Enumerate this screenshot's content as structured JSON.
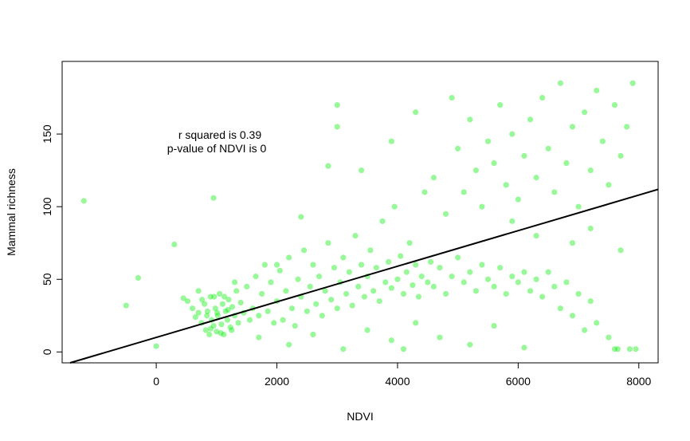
{
  "chart_data": {
    "type": "scatter",
    "title": "",
    "xlabel": "NDVI",
    "ylabel": "Mammal richness",
    "xlim": [
      -1560,
      8320
    ],
    "ylim": [
      -7.5,
      200
    ],
    "xticks": [
      0,
      2000,
      4000,
      6000,
      8000
    ],
    "yticks": [
      0,
      50,
      100,
      150
    ],
    "grid": false,
    "point_color": "#00ee00",
    "line_color": "#000000",
    "annotations": [
      "r squared is  0.39",
      "p-value of NDVI is  0"
    ],
    "regression": {
      "intercept": 10.0,
      "slope": 0.01225
    },
    "points": [
      [
        -1200,
        104
      ],
      [
        -500,
        32
      ],
      [
        -300,
        51
      ],
      [
        300,
        74
      ],
      [
        950,
        106
      ],
      [
        0,
        4
      ],
      [
        3000,
        170
      ],
      [
        3000,
        155
      ],
      [
        450,
        37
      ],
      [
        520,
        35
      ],
      [
        600,
        30
      ],
      [
        650,
        24
      ],
      [
        700,
        42
      ],
      [
        750,
        20
      ],
      [
        800,
        33
      ],
      [
        820,
        15
      ],
      [
        850,
        28
      ],
      [
        880,
        12
      ],
      [
        900,
        38
      ],
      [
        920,
        22
      ],
      [
        950,
        18
      ],
      [
        980,
        30
      ],
      [
        1000,
        14
      ],
      [
        1020,
        25
      ],
      [
        1050,
        40
      ],
      [
        1080,
        19
      ],
      [
        1100,
        33
      ],
      [
        1120,
        12
      ],
      [
        1150,
        28
      ],
      [
        1180,
        22
      ],
      [
        1200,
        36
      ],
      [
        1230,
        17
      ],
      [
        1260,
        31
      ],
      [
        1300,
        25
      ],
      [
        1330,
        42
      ],
      [
        1360,
        20
      ],
      [
        1400,
        34
      ],
      [
        1450,
        27
      ],
      [
        1500,
        45
      ],
      [
        1550,
        22
      ],
      [
        700,
        27
      ],
      [
        760,
        36
      ],
      [
        840,
        25
      ],
      [
        900,
        16
      ],
      [
        960,
        38
      ],
      [
        1010,
        27
      ],
      [
        1070,
        13
      ],
      [
        1130,
        38
      ],
      [
        1190,
        29
      ],
      [
        1250,
        15
      ],
      [
        1600,
        30
      ],
      [
        1650,
        52
      ],
      [
        1700,
        25
      ],
      [
        1750,
        40
      ],
      [
        1800,
        60
      ],
      [
        1850,
        28
      ],
      [
        1900,
        48
      ],
      [
        1950,
        20
      ],
      [
        2000,
        35
      ],
      [
        2050,
        56
      ],
      [
        2100,
        22
      ],
      [
        2150,
        42
      ],
      [
        2200,
        65
      ],
      [
        2250,
        30
      ],
      [
        2300,
        18
      ],
      [
        2350,
        50
      ],
      [
        2400,
        38
      ],
      [
        2450,
        70
      ],
      [
        2500,
        28
      ],
      [
        2550,
        45
      ],
      [
        2600,
        60
      ],
      [
        2650,
        33
      ],
      [
        2700,
        52
      ],
      [
        2750,
        25
      ],
      [
        2800,
        42
      ],
      [
        2850,
        75
      ],
      [
        2900,
        36
      ],
      [
        2950,
        58
      ],
      [
        3000,
        30
      ],
      [
        3050,
        48
      ],
      [
        3100,
        65
      ],
      [
        3150,
        40
      ],
      [
        3200,
        55
      ],
      [
        3250,
        32
      ],
      [
        3300,
        80
      ],
      [
        3350,
        45
      ],
      [
        3400,
        60
      ],
      [
        3450,
        38
      ],
      [
        3500,
        52
      ],
      [
        3550,
        70
      ],
      [
        3600,
        42
      ],
      [
        3650,
        58
      ],
      [
        3700,
        35
      ],
      [
        3750,
        90
      ],
      [
        3800,
        48
      ],
      [
        3850,
        62
      ],
      [
        3900,
        44
      ],
      [
        3950,
        100
      ],
      [
        4000,
        50
      ],
      [
        4050,
        66
      ],
      [
        4100,
        40
      ],
      [
        4150,
        55
      ],
      [
        4200,
        75
      ],
      [
        4250,
        46
      ],
      [
        4300,
        60
      ],
      [
        4350,
        38
      ],
      [
        4400,
        52
      ],
      [
        4450,
        110
      ],
      [
        4500,
        48
      ],
      [
        4550,
        62
      ],
      [
        2200,
        5
      ],
      [
        2600,
        12
      ],
      [
        3100,
        2
      ],
      [
        3500,
        15
      ],
      [
        3900,
        8
      ],
      [
        4300,
        20
      ],
      [
        4700,
        10
      ],
      [
        5200,
        5
      ],
      [
        5600,
        18
      ],
      [
        6100,
        3
      ],
      [
        4600,
        45
      ],
      [
        4700,
        58
      ],
      [
        4800,
        40
      ],
      [
        4900,
        52
      ],
      [
        5000,
        65
      ],
      [
        5100,
        48
      ],
      [
        5200,
        55
      ],
      [
        5300,
        42
      ],
      [
        5400,
        60
      ],
      [
        5500,
        50
      ],
      [
        5600,
        45
      ],
      [
        5700,
        58
      ],
      [
        5800,
        40
      ],
      [
        5900,
        52
      ],
      [
        6000,
        48
      ],
      [
        6100,
        55
      ],
      [
        6200,
        42
      ],
      [
        6300,
        50
      ],
      [
        6400,
        38
      ],
      [
        6500,
        55
      ],
      [
        6600,
        45
      ],
      [
        6700,
        30
      ],
      [
        6800,
        48
      ],
      [
        6900,
        25
      ],
      [
        7000,
        40
      ],
      [
        7100,
        15
      ],
      [
        7200,
        35
      ],
      [
        7300,
        20
      ],
      [
        7500,
        10
      ],
      [
        7600,
        2
      ],
      [
        4600,
        120
      ],
      [
        4800,
        95
      ],
      [
        5000,
        140
      ],
      [
        5100,
        110
      ],
      [
        5200,
        160
      ],
      [
        5300,
        125
      ],
      [
        5400,
        100
      ],
      [
        5500,
        145
      ],
      [
        5600,
        130
      ],
      [
        5700,
        170
      ],
      [
        5800,
        115
      ],
      [
        5900,
        150
      ],
      [
        6000,
        105
      ],
      [
        6100,
        135
      ],
      [
        6200,
        160
      ],
      [
        6300,
        120
      ],
      [
        6400,
        175
      ],
      [
        6500,
        140
      ],
      [
        6600,
        110
      ],
      [
        6700,
        185
      ],
      [
        6800,
        130
      ],
      [
        6900,
        155
      ],
      [
        7000,
        100
      ],
      [
        7100,
        165
      ],
      [
        7200,
        125
      ],
      [
        7300,
        180
      ],
      [
        7400,
        145
      ],
      [
        7500,
        115
      ],
      [
        7600,
        170
      ],
      [
        7700,
        135
      ],
      [
        7800,
        155
      ],
      [
        7900,
        185
      ],
      [
        7950,
        2
      ],
      [
        7850,
        2
      ],
      [
        7650,
        2
      ],
      [
        5900,
        90
      ],
      [
        6300,
        80
      ],
      [
        6900,
        75
      ],
      [
        7200,
        85
      ],
      [
        7700,
        70
      ],
      [
        1300,
        48
      ],
      [
        1700,
        10
      ],
      [
        2000,
        60
      ],
      [
        2400,
        93
      ],
      [
        2850,
        128
      ],
      [
        3400,
        125
      ],
      [
        3900,
        145
      ],
      [
        4300,
        165
      ],
      [
        4900,
        175
      ],
      [
        4100,
        2
      ]
    ]
  }
}
